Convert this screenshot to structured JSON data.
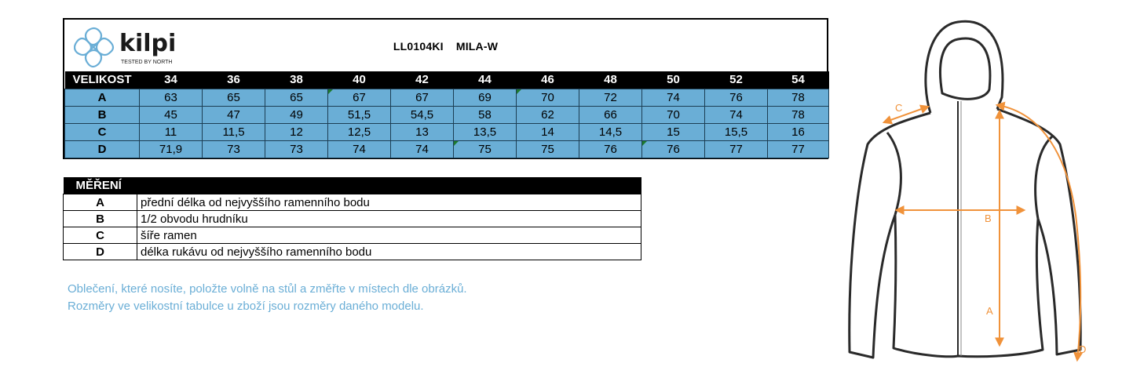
{
  "brand": {
    "name": "kilpi",
    "tagline": "TESTED BY NORTH",
    "color": "#6aaed6"
  },
  "product": {
    "code": "LL0104KI",
    "name": "MILA-W"
  },
  "size_table": {
    "header_label": "VELIKOST",
    "sizes": [
      "34",
      "36",
      "38",
      "40",
      "42",
      "44",
      "46",
      "48",
      "50",
      "52",
      "54"
    ],
    "rows": [
      {
        "label": "A",
        "values": [
          "63",
          "65",
          "65",
          "67",
          "67",
          "69",
          "70",
          "72",
          "74",
          "76",
          "78"
        ]
      },
      {
        "label": "B",
        "values": [
          "45",
          "47",
          "49",
          "51,5",
          "54,5",
          "58",
          "62",
          "66",
          "70",
          "74",
          "78"
        ]
      },
      {
        "label": "C",
        "values": [
          "11",
          "11,5",
          "12",
          "12,5",
          "13",
          "13,5",
          "14",
          "14,5",
          "15",
          "15,5",
          "16"
        ]
      },
      {
        "label": "D",
        "values": [
          "71,9",
          "73",
          "73",
          "74",
          "74",
          "75",
          "75",
          "76",
          "76",
          "77",
          "77"
        ]
      }
    ]
  },
  "measurements": {
    "header": "MĚŘENÍ",
    "rows": [
      {
        "key": "A",
        "desc": "přední délka od nejvyššího ramenního bodu"
      },
      {
        "key": "B",
        "desc": "1/2 obvodu hrudníku"
      },
      {
        "key": "C",
        "desc": "šíře ramen"
      },
      {
        "key": "D",
        "desc": "délka rukávu od nejvyššího ramenního bodu"
      }
    ]
  },
  "notes": {
    "line1": "Oblečení, které nosíte, položte volně na stůl a změřte v místech dle obrázků.",
    "line2": "Rozměry ve velikostní tabulce u zboží jsou rozměry daného modelu."
  },
  "illustration": {
    "label_a": "A",
    "label_b": "B",
    "label_c": "C",
    "label_d": "D",
    "arrow_color": "#f0923a"
  }
}
